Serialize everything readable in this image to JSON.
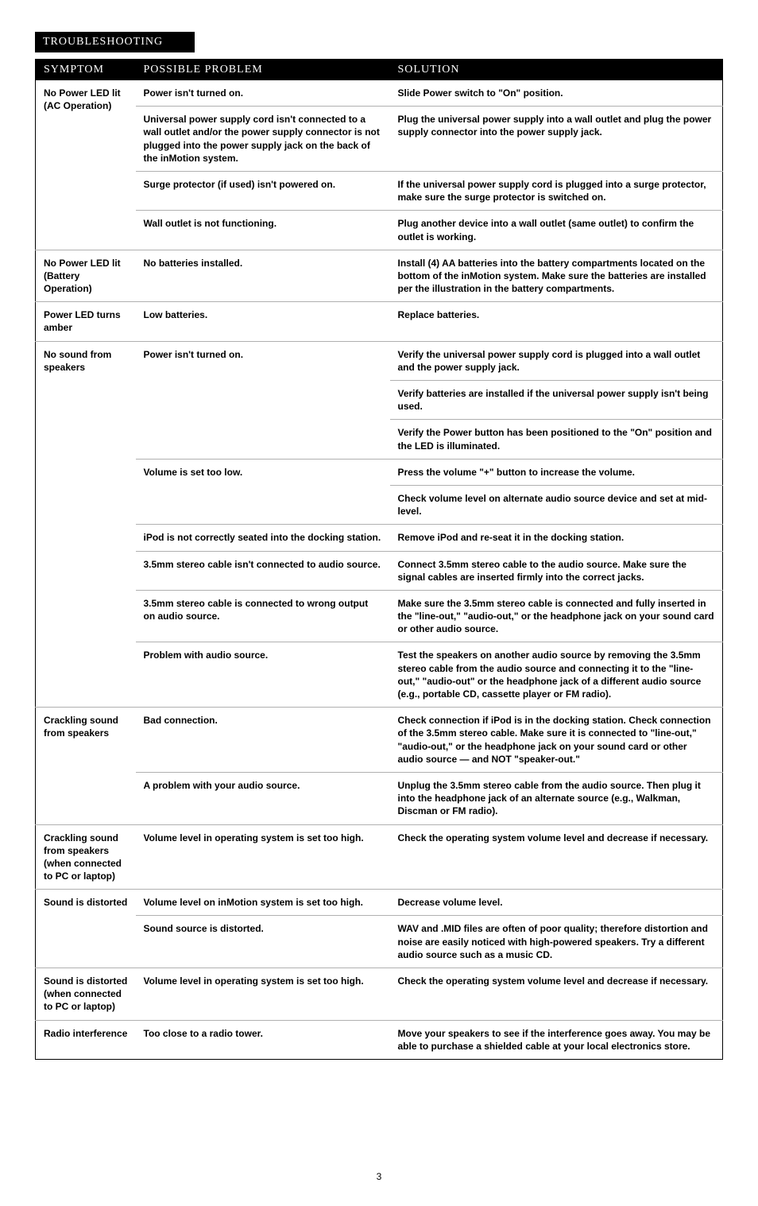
{
  "section_title": "TROUBLESHOOTING",
  "page_number": "3",
  "headers": {
    "symptom": "SYMPTOM",
    "problem": "POSSIBLE PROBLEM",
    "solution": "SOLUTION"
  },
  "groups": [
    {
      "symptom": "No Power LED lit (AC Operation)",
      "entries": [
        {
          "problem": "Power isn't turned on.",
          "solutions": [
            "Slide Power switch to \"On\" position."
          ]
        },
        {
          "problem": "Universal power supply cord isn't connected to a wall outlet and/or the power supply connector is not plugged into the power supply jack on the back of the inMotion system.",
          "solutions": [
            "Plug the universal power supply into a wall outlet and plug the power supply connector into the power supply jack."
          ]
        },
        {
          "problem": "Surge protector (if used) isn't powered on.",
          "solutions": [
            "If the universal power supply cord is plugged into a surge protector, make sure the surge protector is switched on."
          ]
        },
        {
          "problem": "Wall outlet is not functioning.",
          "solutions": [
            "Plug another device into a wall outlet (same outlet) to confirm the outlet is working."
          ]
        }
      ]
    },
    {
      "symptom": "No Power LED lit (Battery Operation)",
      "entries": [
        {
          "problem": "No batteries installed.",
          "solutions": [
            "Install (4) AA batteries into the battery compartments located on the bottom of the inMotion system. Make sure the batteries are installed per the illustration in the battery compartments."
          ]
        }
      ]
    },
    {
      "symptom": "Power LED turns amber",
      "entries": [
        {
          "problem": "Low batteries.",
          "solutions": [
            "Replace batteries."
          ]
        }
      ]
    },
    {
      "symptom": "No sound from speakers",
      "entries": [
        {
          "problem": "Power isn't turned on.",
          "solutions": [
            "Verify the universal power supply cord is plugged into a wall outlet and the power supply jack.",
            "Verify batteries are installed if the universal power supply isn't being used.",
            "Verify the Power button has been positioned to the \"On\" position and the LED is illuminated."
          ]
        },
        {
          "problem": "Volume is set too low.",
          "solutions": [
            "Press the volume \"+\" button to increase the volume.",
            "Check volume level on alternate audio source device and set at mid-level."
          ]
        },
        {
          "problem": "iPod is not correctly seated into the docking station.",
          "solutions": [
            "Remove iPod and re-seat it in the docking station."
          ]
        },
        {
          "problem": "3.5mm stereo cable isn't connected to audio source.",
          "solutions": [
            "Connect 3.5mm stereo cable to the audio source. Make sure the signal cables are inserted firmly into the correct jacks."
          ]
        },
        {
          "problem": "3.5mm stereo cable is connected to wrong output on audio source.",
          "solutions": [
            "Make sure the 3.5mm stereo cable is connected and fully inserted in the \"line-out,\" \"audio-out,\" or the headphone jack on your sound card or other audio source."
          ]
        },
        {
          "problem": "Problem with audio source.",
          "solutions": [
            "Test the speakers on another audio source by removing the 3.5mm stereo cable from the audio source and connecting it to the \"line-out,\" \"audio-out\" or the headphone jack of a different audio source (e.g., portable CD, cassette player or FM radio)."
          ]
        }
      ]
    },
    {
      "symptom": "Crackling sound from speakers",
      "entries": [
        {
          "problem": "Bad connection.",
          "solutions": [
            "Check connection if iPod is in the docking station. Check connection of the 3.5mm stereo cable. Make sure it is connected to \"line-out,\" \"audio-out,\" or the headphone jack on your sound card or other audio source — and NOT \"speaker-out.\""
          ]
        },
        {
          "problem": "A problem with your audio source.",
          "solutions": [
            "Unplug the 3.5mm stereo cable from the audio source. Then plug it into the headphone jack of an alternate source (e.g., Walkman, Discman or FM radio)."
          ]
        }
      ]
    },
    {
      "symptom": "Crackling sound from speakers (when connected to PC or laptop)",
      "entries": [
        {
          "problem": "Volume level in operating system is set too high.",
          "solutions": [
            "Check the operating system volume level and decrease if necessary."
          ]
        }
      ]
    },
    {
      "symptom": "Sound is distorted",
      "entries": [
        {
          "problem": "Volume level on inMotion system is set too high.",
          "solutions": [
            "Decrease volume level."
          ]
        },
        {
          "problem": "Sound source is distorted.",
          "solutions": [
            "WAV and .MID files are often of poor quality; therefore distortion and noise are easily noticed with high-powered speakers. Try a different audio source such as a music CD."
          ]
        }
      ]
    },
    {
      "symptom": "Sound is distorted (when connected to PC or laptop)",
      "entries": [
        {
          "problem": "Volume level in operating system is set too high.",
          "solutions": [
            "Check the operating system volume level and decrease if necessary."
          ]
        }
      ]
    },
    {
      "symptom": "Radio interference",
      "entries": [
        {
          "problem": "Too close to a radio tower.",
          "solutions": [
            "Move your speakers to see if the interference goes away. You may be able to purchase a shielded cable at your local electronics store."
          ]
        }
      ]
    }
  ]
}
